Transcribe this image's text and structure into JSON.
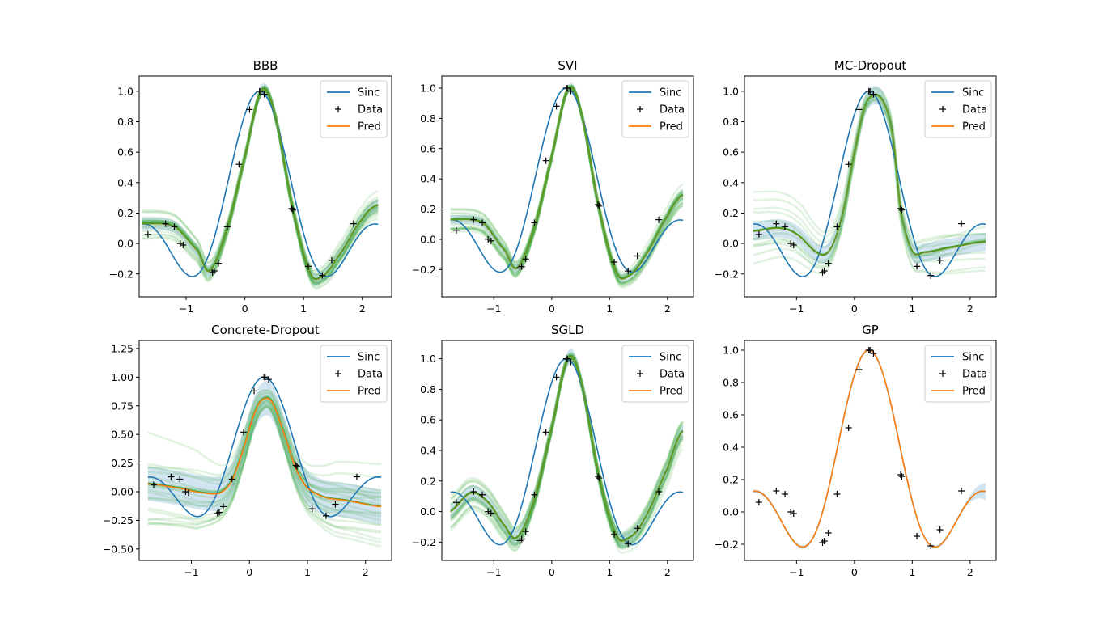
{
  "chart_data": [
    {
      "type": "line",
      "title": "BBB",
      "xlim": [
        -1.8,
        2.5
      ],
      "ylim": [
        -0.35,
        1.1
      ],
      "xticks": [
        -1,
        0,
        1,
        2
      ],
      "yticks": [
        -0.2,
        0.0,
        0.2,
        0.4,
        0.6,
        0.8,
        1.0
      ],
      "ytick_labels": [
        "−0.2",
        "0.0",
        "0.2",
        "0.4",
        "0.6",
        "0.8",
        "1.0"
      ],
      "xtick_labels": [
        "−1",
        "0",
        "1",
        "2"
      ],
      "legend": [
        "Sinc",
        "Data",
        "Pred"
      ],
      "legend_loc": "upper right",
      "data_points": {
        "x": [
          -1.65,
          -1.35,
          -1.2,
          -1.1,
          -1.05,
          -0.55,
          -0.52,
          -0.45,
          -0.3,
          -0.1,
          0.08,
          0.25,
          0.27,
          0.33,
          0.8,
          0.82,
          1.08,
          1.32,
          1.48,
          1.85
        ],
        "y": [
          0.06,
          0.13,
          0.11,
          0.0,
          -0.01,
          -0.19,
          -0.18,
          -0.13,
          0.11,
          0.52,
          0.88,
          1.0,
          1.0,
          0.98,
          0.23,
          0.22,
          -0.15,
          -0.21,
          -0.11,
          0.13
        ]
      },
      "pred": {
        "x": [
          -1.75,
          -1.2,
          -0.8,
          -0.6,
          -0.3,
          0.0,
          0.28,
          0.5,
          0.8,
          1.1,
          1.3,
          1.6,
          2.0,
          2.25
        ],
        "y": [
          0.13,
          0.11,
          -0.05,
          -0.18,
          0.1,
          0.57,
          1.0,
          0.86,
          0.26,
          -0.18,
          -0.22,
          -0.08,
          0.16,
          0.25
        ]
      },
      "band": 0.04,
      "samples": 20,
      "sample_spread": 0.05
    },
    {
      "type": "line",
      "title": "SVI",
      "xlim": [
        -1.9,
        2.45
      ],
      "ylim": [
        -0.38,
        1.08
      ],
      "xticks": [
        -1,
        0,
        1,
        2
      ],
      "yticks": [
        -0.2,
        0.0,
        0.2,
        0.4,
        0.6,
        0.8,
        1.0
      ],
      "ytick_labels": [
        "−0.2",
        "0.0",
        "0.2",
        "0.4",
        "0.6",
        "0.8",
        "1.0"
      ],
      "xtick_labels": [
        "−1",
        "0",
        "1",
        "2"
      ],
      "legend": [
        "Sinc",
        "Data",
        "Pred"
      ],
      "legend_loc": "upper right",
      "data_points": {
        "x": [
          -1.65,
          -1.35,
          -1.2,
          -1.1,
          -1.05,
          -0.55,
          -0.52,
          -0.45,
          -0.3,
          -0.1,
          0.08,
          0.25,
          0.27,
          0.33,
          0.8,
          0.82,
          1.08,
          1.32,
          1.48,
          1.85
        ],
        "y": [
          0.06,
          0.13,
          0.11,
          0.0,
          -0.01,
          -0.19,
          -0.18,
          -0.13,
          0.11,
          0.52,
          0.88,
          1.0,
          1.0,
          0.98,
          0.23,
          0.22,
          -0.15,
          -0.21,
          -0.11,
          0.13
        ]
      },
      "pred": {
        "x": [
          -1.75,
          -1.2,
          -0.8,
          -0.6,
          -0.3,
          0.0,
          0.28,
          0.5,
          0.8,
          1.1,
          1.3,
          1.6,
          2.0,
          2.25
        ],
        "y": [
          0.13,
          0.11,
          -0.08,
          -0.19,
          0.08,
          0.55,
          0.99,
          0.85,
          0.24,
          -0.2,
          -0.25,
          -0.12,
          0.15,
          0.29
        ]
      },
      "band": 0.03,
      "samples": 20,
      "sample_spread": 0.05
    },
    {
      "type": "line",
      "title": "MC-Dropout",
      "xlim": [
        -1.9,
        2.45
      ],
      "ylim": [
        -0.35,
        1.1
      ],
      "xticks": [
        -1,
        0,
        1,
        2
      ],
      "yticks": [
        -0.2,
        0.0,
        0.2,
        0.4,
        0.6,
        0.8,
        1.0
      ],
      "ytick_labels": [
        "−0.2",
        "0.0",
        "0.2",
        "0.4",
        "0.6",
        "0.8",
        "1.0"
      ],
      "xtick_labels": [
        "−1",
        "0",
        "1",
        "2"
      ],
      "legend": [
        "Sinc",
        "Data",
        "Pred"
      ],
      "legend_loc": "upper right",
      "data_points": {
        "x": [
          -1.65,
          -1.35,
          -1.2,
          -1.1,
          -1.05,
          -0.55,
          -0.52,
          -0.45,
          -0.3,
          -0.1,
          0.08,
          0.25,
          0.27,
          0.33,
          0.8,
          0.82,
          1.08,
          1.32,
          1.48,
          1.85
        ],
        "y": [
          0.06,
          0.13,
          0.11,
          0.0,
          -0.01,
          -0.19,
          -0.18,
          -0.13,
          0.11,
          0.52,
          0.88,
          1.0,
          1.0,
          0.98,
          0.23,
          0.22,
          -0.15,
          -0.21,
          -0.11,
          0.13
        ]
      },
      "pred": {
        "x": [
          -1.75,
          -1.3,
          -1.0,
          -0.6,
          -0.4,
          -0.2,
          0.0,
          0.2,
          0.45,
          0.65,
          0.8,
          1.0,
          1.2,
          1.6,
          2.25
        ],
        "y": [
          0.08,
          0.1,
          0.06,
          -0.07,
          -0.03,
          0.2,
          0.6,
          0.92,
          0.96,
          0.75,
          0.22,
          -0.05,
          -0.06,
          -0.03,
          0.01
        ]
      },
      "band": 0.06,
      "samples": 12,
      "sample_spread": 0.12
    },
    {
      "type": "line",
      "title": "Concrete-Dropout",
      "xlim": [
        -1.9,
        2.45
      ],
      "ylim": [
        -0.6,
        1.32
      ],
      "xticks": [
        -1,
        0,
        1,
        2
      ],
      "yticks": [
        -0.5,
        -0.25,
        0.0,
        0.25,
        0.5,
        0.75,
        1.0,
        1.25
      ],
      "ytick_labels": [
        "−0.50",
        "−0.25",
        "0.00",
        "0.25",
        "0.50",
        "0.75",
        "1.00",
        "1.25"
      ],
      "xtick_labels": [
        "−1",
        "0",
        "1",
        "2"
      ],
      "legend": [
        "Sinc",
        "Data",
        "Pred"
      ],
      "legend_loc": "upper right",
      "data_points": {
        "x": [
          -1.65,
          -1.35,
          -1.2,
          -1.1,
          -1.05,
          -0.55,
          -0.52,
          -0.45,
          -0.3,
          -0.1,
          0.08,
          0.25,
          0.27,
          0.33,
          0.8,
          0.82,
          1.08,
          1.32,
          1.48,
          1.85
        ],
        "y": [
          0.06,
          0.13,
          0.11,
          0.0,
          -0.01,
          -0.19,
          -0.18,
          -0.13,
          0.11,
          0.52,
          0.88,
          1.0,
          1.0,
          0.98,
          0.23,
          0.22,
          -0.15,
          -0.21,
          -0.11,
          0.13
        ]
      },
      "pred": {
        "x": [
          -1.75,
          -1.2,
          -0.8,
          -0.5,
          -0.3,
          -0.1,
          0.1,
          0.25,
          0.4,
          0.6,
          0.8,
          1.0,
          1.3,
          1.7,
          2.25
        ],
        "y": [
          0.07,
          0.03,
          -0.01,
          -0.01,
          0.1,
          0.38,
          0.7,
          0.81,
          0.77,
          0.5,
          0.2,
          0.03,
          -0.05,
          -0.08,
          -0.13
        ]
      },
      "band": 0.15,
      "samples": 22,
      "sample_spread": 0.22
    },
    {
      "type": "line",
      "title": "SGLD",
      "xlim": [
        -1.9,
        2.45
      ],
      "ylim": [
        -0.32,
        1.12
      ],
      "xticks": [
        -1,
        0,
        1,
        2
      ],
      "yticks": [
        -0.2,
        0.0,
        0.2,
        0.4,
        0.6,
        0.8,
        1.0
      ],
      "ytick_labels": [
        "−0.2",
        "0.0",
        "0.2",
        "0.4",
        "0.6",
        "0.8",
        "1.0"
      ],
      "xtick_labels": [
        "−1",
        "0",
        "1",
        "2"
      ],
      "legend": [
        "Sinc",
        "Data",
        "Pred"
      ],
      "legend_loc": "upper right",
      "data_points": {
        "x": [
          -1.65,
          -1.35,
          -1.2,
          -1.1,
          -1.05,
          -0.55,
          -0.52,
          -0.45,
          -0.3,
          -0.1,
          0.08,
          0.25,
          0.27,
          0.33,
          0.8,
          0.82,
          1.08,
          1.32,
          1.48,
          1.85
        ],
        "y": [
          0.06,
          0.13,
          0.11,
          0.0,
          -0.01,
          -0.19,
          -0.18,
          -0.13,
          0.11,
          0.52,
          0.88,
          1.0,
          1.0,
          0.98,
          0.23,
          0.22,
          -0.15,
          -0.21,
          -0.11,
          0.13
        ]
      },
      "pred": {
        "x": [
          -1.75,
          -1.4,
          -1.1,
          -0.8,
          -0.6,
          -0.3,
          0.0,
          0.28,
          0.5,
          0.8,
          1.1,
          1.3,
          1.6,
          2.0,
          2.25
        ],
        "y": [
          0.0,
          0.12,
          0.06,
          -0.1,
          -0.17,
          0.08,
          0.55,
          1.0,
          0.86,
          0.26,
          -0.14,
          -0.18,
          -0.05,
          0.28,
          0.52
        ]
      },
      "band": 0.05,
      "samples": 20,
      "sample_spread": 0.06
    },
    {
      "type": "line",
      "title": "GP",
      "xlim": [
        -1.9,
        2.45
      ],
      "ylim": [
        -0.3,
        1.06
      ],
      "xticks": [
        -1,
        0,
        1,
        2
      ],
      "yticks": [
        -0.2,
        0.0,
        0.2,
        0.4,
        0.6,
        0.8,
        1.0
      ],
      "ytick_labels": [
        "−0.2",
        "0.0",
        "0.2",
        "0.4",
        "0.6",
        "0.8",
        "1.0"
      ],
      "xtick_labels": [
        "−1",
        "0",
        "1",
        "2"
      ],
      "legend": [
        "Sinc",
        "Data",
        "Pred"
      ],
      "legend_loc": "upper right",
      "data_points": {
        "x": [
          -1.65,
          -1.35,
          -1.2,
          -1.1,
          -1.05,
          -0.55,
          -0.52,
          -0.45,
          -0.3,
          -0.1,
          0.08,
          0.25,
          0.27,
          0.33,
          0.8,
          0.82,
          1.08,
          1.32,
          1.48,
          1.85
        ],
        "y": [
          0.06,
          0.13,
          0.11,
          0.0,
          -0.01,
          -0.19,
          -0.18,
          -0.13,
          0.11,
          0.52,
          0.88,
          1.0,
          1.0,
          0.98,
          0.23,
          0.22,
          -0.15,
          -0.21,
          -0.11,
          0.13
        ]
      },
      "pred": "sinc",
      "band": 0.01,
      "samples": 0,
      "sample_spread": 0
    }
  ],
  "colors": {
    "sinc": "#1f77b4",
    "pred": "#ff7f0e",
    "samples": "#2ca02c",
    "band": "#1f77b4",
    "data": "#000000"
  }
}
